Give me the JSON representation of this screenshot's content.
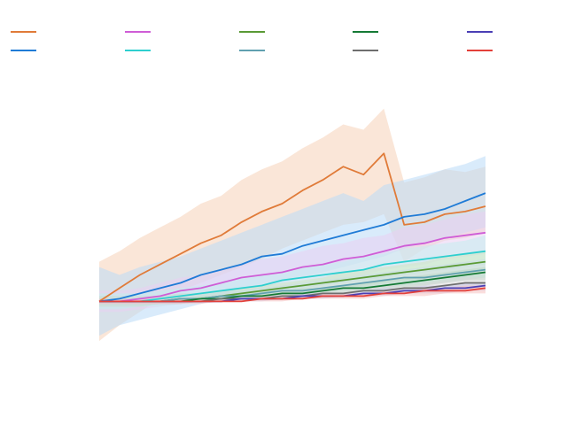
{
  "chart_data": {
    "type": "line",
    "title": "",
    "xlabel": "",
    "ylabel": "",
    "grid": false,
    "legend": "top, 5 columns",
    "x": [
      0,
      1,
      2,
      3,
      4,
      5,
      6,
      7,
      8,
      9,
      10,
      11,
      12,
      13,
      14,
      15,
      16,
      17,
      18,
      19
    ],
    "ylim": [
      -0.2,
      0.94
    ],
    "series": [
      {
        "color": "#e07b39",
        "band_color": "#f6d2b8",
        "values": [
          0.0,
          0.05,
          0.1,
          0.14,
          0.18,
          0.22,
          0.25,
          0.3,
          0.34,
          0.37,
          0.42,
          0.46,
          0.51,
          0.48,
          0.56,
          0.29,
          0.3,
          0.33,
          0.34,
          0.36
        ],
        "lower": [
          -0.15,
          -0.09,
          -0.04,
          0.01,
          0.04,
          0.07,
          0.1,
          0.13,
          0.16,
          0.2,
          0.23,
          0.26,
          0.29,
          0.3,
          0.33,
          0.15,
          0.2,
          0.23,
          0.24,
          0.26
        ],
        "upper": [
          0.15,
          0.19,
          0.24,
          0.28,
          0.32,
          0.37,
          0.4,
          0.46,
          0.5,
          0.53,
          0.58,
          0.62,
          0.67,
          0.65,
          0.73,
          0.45,
          0.47,
          0.5,
          0.49,
          0.51
        ]
      },
      {
        "color": "#1f7bd6",
        "band_color": "#b9daf7",
        "values": [
          0.0,
          0.01,
          0.03,
          0.05,
          0.07,
          0.1,
          0.12,
          0.14,
          0.17,
          0.18,
          0.21,
          0.23,
          0.25,
          0.27,
          0.29,
          0.32,
          0.33,
          0.35,
          0.38,
          0.41
        ],
        "lower": [
          -0.13,
          -0.09,
          -0.07,
          -0.05,
          -0.03,
          -0.01,
          0.01,
          0.03,
          0.05,
          0.07,
          0.09,
          0.11,
          0.13,
          0.15,
          0.17,
          0.2,
          0.22,
          0.24,
          0.26,
          0.28
        ],
        "upper": [
          0.13,
          0.1,
          0.13,
          0.15,
          0.17,
          0.2,
          0.23,
          0.26,
          0.29,
          0.32,
          0.35,
          0.38,
          0.41,
          0.38,
          0.44,
          0.46,
          0.48,
          0.5,
          0.52,
          0.55
        ]
      },
      {
        "color": "#cf5dd6",
        "band_color": "#ead0f3",
        "values": [
          0.0,
          0.0,
          0.01,
          0.02,
          0.04,
          0.05,
          0.07,
          0.09,
          0.1,
          0.11,
          0.13,
          0.14,
          0.16,
          0.17,
          0.19,
          0.21,
          0.22,
          0.24,
          0.25,
          0.26
        ],
        "lower": [
          -0.04,
          -0.04,
          -0.03,
          -0.02,
          -0.01,
          0.0,
          0.02,
          0.03,
          0.04,
          0.05,
          0.07,
          0.08,
          0.09,
          0.1,
          0.12,
          0.13,
          0.14,
          0.16,
          0.17,
          0.18
        ],
        "upper": [
          0.04,
          0.04,
          0.05,
          0.07,
          0.09,
          0.1,
          0.12,
          0.14,
          0.16,
          0.17,
          0.19,
          0.21,
          0.22,
          0.24,
          0.25,
          0.28,
          0.29,
          0.31,
          0.33,
          0.34
        ]
      },
      {
        "color": "#2ecfcf",
        "band_color": "#c3eeee",
        "values": [
          0.0,
          0.0,
          0.0,
          0.01,
          0.02,
          0.03,
          0.04,
          0.05,
          0.06,
          0.08,
          0.09,
          0.1,
          0.11,
          0.12,
          0.14,
          0.15,
          0.16,
          0.17,
          0.18,
          0.19
        ],
        "lower": [
          -0.03,
          -0.03,
          -0.02,
          -0.02,
          -0.01,
          0.0,
          0.01,
          0.02,
          0.03,
          0.04,
          0.05,
          0.06,
          0.07,
          0.08,
          0.09,
          0.1,
          0.11,
          0.12,
          0.13,
          0.14
        ],
        "upper": [
          0.03,
          0.03,
          0.03,
          0.04,
          0.05,
          0.06,
          0.07,
          0.09,
          0.1,
          0.11,
          0.13,
          0.14,
          0.15,
          0.17,
          0.18,
          0.2,
          0.21,
          0.22,
          0.23,
          0.25
        ]
      },
      {
        "color": "#5a9a35",
        "band_color": "#cfe3c1",
        "values": [
          0.0,
          0.0,
          0.0,
          0.0,
          0.01,
          0.01,
          0.02,
          0.03,
          0.04,
          0.05,
          0.06,
          0.07,
          0.08,
          0.09,
          0.1,
          0.11,
          0.12,
          0.13,
          0.14,
          0.15
        ],
        "lower": [
          -0.02,
          -0.02,
          -0.02,
          -0.01,
          -0.01,
          0.0,
          0.0,
          0.01,
          0.02,
          0.03,
          0.04,
          0.04,
          0.05,
          0.06,
          0.07,
          0.08,
          0.09,
          0.1,
          0.11,
          0.12
        ],
        "upper": [
          0.02,
          0.02,
          0.02,
          0.02,
          0.03,
          0.03,
          0.04,
          0.05,
          0.06,
          0.07,
          0.08,
          0.09,
          0.11,
          0.12,
          0.13,
          0.14,
          0.15,
          0.17,
          0.18,
          0.19
        ]
      },
      {
        "color": "#60a0b0",
        "band_color": "#c9dde3",
        "values": [
          0.0,
          0.0,
          0.0,
          0.0,
          0.01,
          0.01,
          0.02,
          0.02,
          0.03,
          0.04,
          0.04,
          0.05,
          0.06,
          0.07,
          0.08,
          0.09,
          0.09,
          0.1,
          0.11,
          0.12
        ],
        "lower": [
          -0.02,
          -0.02,
          -0.02,
          -0.01,
          -0.01,
          0.0,
          0.0,
          0.01,
          0.01,
          0.02,
          0.02,
          0.03,
          0.04,
          0.04,
          0.05,
          0.06,
          0.06,
          0.07,
          0.08,
          0.09
        ],
        "upper": [
          0.02,
          0.02,
          0.02,
          0.02,
          0.03,
          0.03,
          0.04,
          0.04,
          0.05,
          0.06,
          0.07,
          0.08,
          0.09,
          0.1,
          0.11,
          0.12,
          0.13,
          0.14,
          0.15,
          0.16
        ]
      },
      {
        "color": "#157a35",
        "band_color": "#bcd9c4",
        "values": [
          0.0,
          0.0,
          0.0,
          0.0,
          0.0,
          0.01,
          0.01,
          0.02,
          0.02,
          0.03,
          0.03,
          0.04,
          0.05,
          0.05,
          0.06,
          0.07,
          0.08,
          0.09,
          0.1,
          0.11
        ],
        "lower": [
          -0.01,
          -0.01,
          -0.01,
          -0.01,
          -0.01,
          0.0,
          0.0,
          0.01,
          0.01,
          0.02,
          0.02,
          0.03,
          0.03,
          0.04,
          0.04,
          0.05,
          0.06,
          0.07,
          0.08,
          0.08
        ],
        "upper": [
          0.01,
          0.01,
          0.01,
          0.01,
          0.01,
          0.02,
          0.02,
          0.03,
          0.04,
          0.04,
          0.05,
          0.05,
          0.06,
          0.07,
          0.08,
          0.09,
          0.1,
          0.11,
          0.12,
          0.13
        ]
      },
      {
        "color": "#6e6e6e",
        "band_color": "#d9d9d9",
        "values": [
          0.0,
          0.0,
          0.0,
          0.0,
          0.0,
          0.0,
          0.01,
          0.01,
          0.01,
          0.02,
          0.02,
          0.03,
          0.03,
          0.04,
          0.04,
          0.05,
          0.05,
          0.06,
          0.07,
          0.07
        ],
        "lower": [
          -0.01,
          -0.01,
          -0.01,
          -0.01,
          -0.01,
          0.0,
          0.0,
          0.0,
          0.01,
          0.01,
          0.01,
          0.02,
          0.02,
          0.03,
          0.03,
          0.03,
          0.04,
          0.04,
          0.05,
          0.05
        ],
        "upper": [
          0.01,
          0.01,
          0.01,
          0.01,
          0.01,
          0.01,
          0.02,
          0.02,
          0.02,
          0.03,
          0.03,
          0.04,
          0.04,
          0.05,
          0.06,
          0.06,
          0.07,
          0.08,
          0.09,
          0.09
        ]
      },
      {
        "color": "#4a3fb5",
        "band_color": "#cbc7ea",
        "values": [
          0.0,
          0.0,
          0.0,
          0.0,
          0.0,
          0.0,
          0.0,
          0.01,
          0.01,
          0.01,
          0.02,
          0.02,
          0.02,
          0.03,
          0.03,
          0.04,
          0.04,
          0.05,
          0.05,
          0.06
        ],
        "lower": [
          -0.01,
          -0.01,
          -0.01,
          -0.01,
          -0.01,
          0.0,
          0.0,
          0.0,
          0.0,
          0.01,
          0.01,
          0.01,
          0.02,
          0.02,
          0.02,
          0.03,
          0.03,
          0.03,
          0.04,
          0.04
        ],
        "upper": [
          0.01,
          0.01,
          0.01,
          0.01,
          0.01,
          0.01,
          0.01,
          0.02,
          0.02,
          0.02,
          0.03,
          0.03,
          0.03,
          0.04,
          0.05,
          0.05,
          0.06,
          0.06,
          0.07,
          0.07
        ]
      },
      {
        "color": "#e3403a",
        "band_color": "#f5c3c1",
        "values": [
          0.0,
          0.0,
          0.0,
          0.0,
          0.0,
          0.0,
          0.0,
          0.0,
          0.01,
          0.01,
          0.01,
          0.02,
          0.02,
          0.02,
          0.03,
          0.03,
          0.04,
          0.04,
          0.04,
          0.05
        ],
        "lower": [
          -0.01,
          -0.01,
          -0.01,
          -0.01,
          -0.01,
          -0.01,
          0.0,
          0.0,
          0.0,
          0.0,
          0.01,
          0.01,
          0.01,
          0.01,
          0.02,
          0.02,
          0.02,
          0.03,
          0.03,
          0.03
        ],
        "upper": [
          0.01,
          0.01,
          0.01,
          0.01,
          0.01,
          0.01,
          0.01,
          0.01,
          0.02,
          0.02,
          0.02,
          0.03,
          0.03,
          0.03,
          0.04,
          0.04,
          0.05,
          0.05,
          0.06,
          0.06
        ]
      }
    ]
  }
}
